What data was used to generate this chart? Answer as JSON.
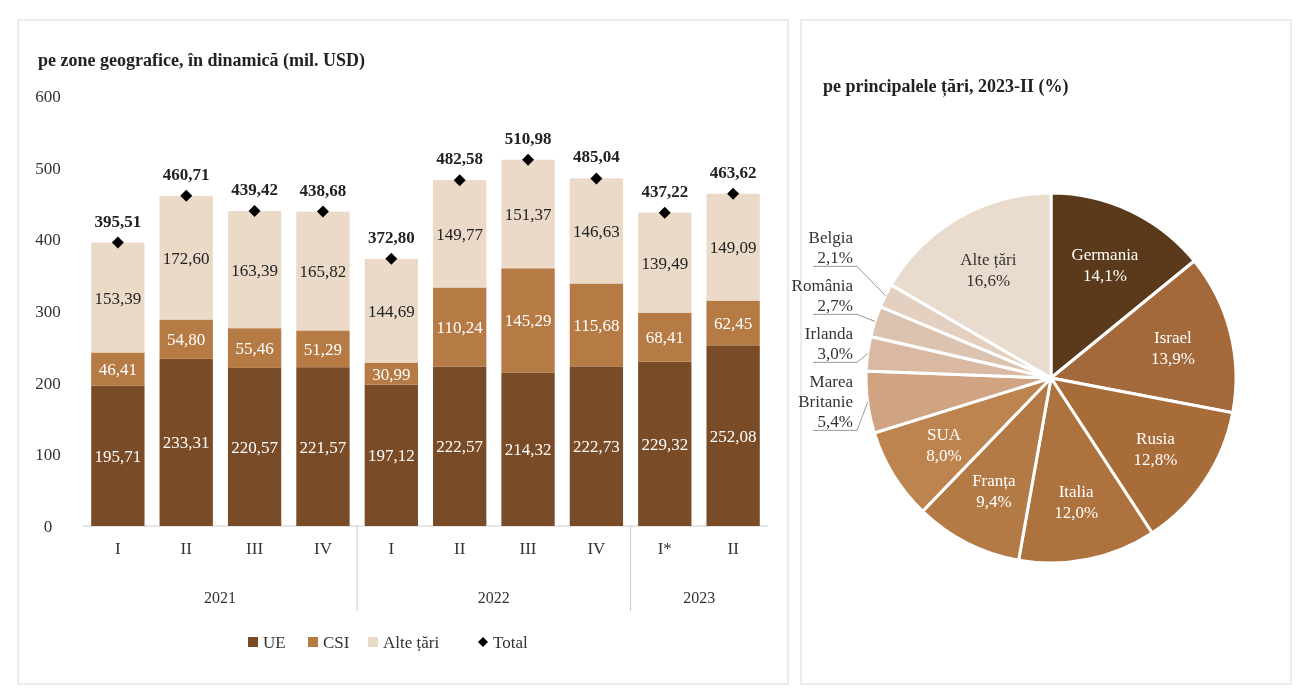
{
  "chart_data": [
    {
      "type": "bar",
      "stacked": true,
      "title": "pe zone geografice, în dinamică (mil. USD)",
      "categories": [
        "I",
        "II",
        "III",
        "IV",
        "I",
        "II",
        "III",
        "IV",
        "I*",
        "II"
      ],
      "annotations": [
        "2021",
        "2022",
        "2023"
      ],
      "ylim": [
        0,
        600
      ],
      "yticks": [
        0,
        100,
        200,
        300,
        400,
        500,
        600
      ],
      "legend": "bottom",
      "series": [
        {
          "name": "UE",
          "color": "#7a4b27",
          "values": [
            195.71,
            233.31,
            220.57,
            221.57,
            197.12,
            222.57,
            214.32,
            222.73,
            229.32,
            252.08
          ],
          "value_labels": [
            "195,71",
            "233,31",
            "220,57",
            "221,57",
            "197,12",
            "222,57",
            "214,32",
            "222,73",
            "229,32",
            "252,08"
          ]
        },
        {
          "name": "CSI",
          "color": "#b67a45",
          "values": [
            46.41,
            54.8,
            55.46,
            51.29,
            30.99,
            110.24,
            145.29,
            115.68,
            68.41,
            62.45
          ],
          "value_labels": [
            "46,41",
            "54,80",
            "55,46",
            "51,29",
            "30,99",
            "110,24",
            "145,29",
            "115,68",
            "68,41",
            "62,45"
          ]
        },
        {
          "name": "Alte țări",
          "color": "#ecdac8",
          "values": [
            153.39,
            172.6,
            163.39,
            165.82,
            144.69,
            149.77,
            151.37,
            146.63,
            139.49,
            149.09
          ],
          "value_labels": [
            "153,39",
            "172,60",
            "163,39",
            "165,82",
            "144,69",
            "149,77",
            "151,37",
            "146,63",
            "139,49",
            "149,09"
          ]
        },
        {
          "name": "Total",
          "type": "scatter",
          "marker": "diamond",
          "color": "#000000",
          "values": [
            395.51,
            460.71,
            439.42,
            438.68,
            372.8,
            482.58,
            510.98,
            485.04,
            437.22,
            463.62
          ],
          "value_labels": [
            "395,51",
            "460,71",
            "439,42",
            "438,68",
            "372,80",
            "482,58",
            "510,98",
            "485,04",
            "437,22",
            "463,62"
          ]
        }
      ]
    },
    {
      "type": "pie",
      "title": "pe principalele țări, 2023-II (%)",
      "categories": [
        "Germania",
        "Israel",
        "Rusia",
        "Italia",
        "Franța",
        "SUA",
        "Marea Britanie",
        "Irlanda",
        "România",
        "Belgia",
        "Alte țări"
      ],
      "values": [
        14.1,
        13.9,
        12.8,
        12.0,
        9.4,
        8.0,
        5.4,
        3.0,
        2.7,
        2.1,
        16.6
      ],
      "value_labels": [
        "14,1%",
        "13,9%",
        "12,8%",
        "12,0%",
        "9,4%",
        "8,0%",
        "5,4%",
        "3,0%",
        "2,7%",
        "2,1%",
        "16,6%"
      ],
      "colors": [
        "#5b3a1c",
        "#a3693a",
        "#a86c38",
        "#ad723e",
        "#b47a45",
        "#bd844f",
        "#d0a483",
        "#d9b9a1",
        "#dcc3b0",
        "#e3d0c1",
        "#e9dbce"
      ]
    }
  ]
}
